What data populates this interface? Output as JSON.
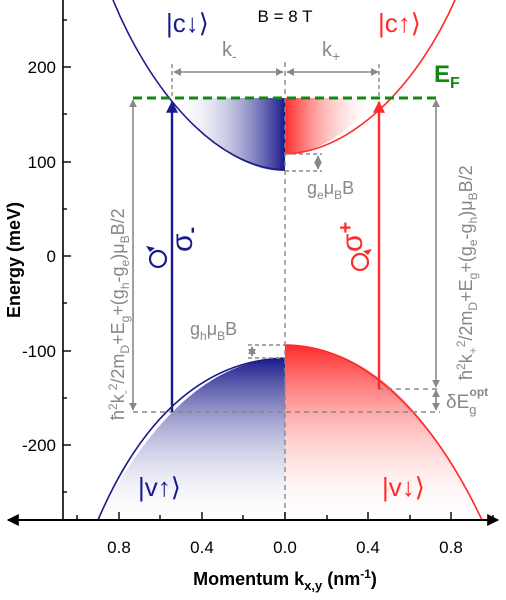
{
  "header": {
    "field": "B = 8 T"
  },
  "axes": {
    "ylabel": "Energy (meV)",
    "ylabel_short": "Energy",
    "ylabel_unit": "(meV)",
    "xlabel_main": "Momentum k",
    "xlabel_sub": "x,y",
    "xlabel_unit_pre": "(nm",
    "xlabel_unit_sup": "-1",
    "xlabel_unit_post": ")",
    "y_ticks": [
      "200",
      "100",
      "0",
      "-100",
      "-200"
    ],
    "x_ticks": [
      "0.8",
      "0.4",
      "0.0",
      "0.4",
      "0.8"
    ]
  },
  "bands": {
    "c_down": {
      "bra": "|c",
      "arrow": "↓",
      "ket": "⟩"
    },
    "c_up": {
      "bra": "|c",
      "arrow": "↑",
      "ket": "⟩"
    },
    "v_up": {
      "bra": "|v",
      "arrow": "↑",
      "ket": "⟩"
    },
    "v_down": {
      "bra": "|v",
      "arrow": "↓",
      "ket": "⟩"
    }
  },
  "labels": {
    "k_minus": "k",
    "k_minus_sub": "-",
    "k_plus": "k",
    "k_plus_sub": "+",
    "fermi": "E",
    "fermi_sub": "F",
    "ge_g": "g",
    "ge_sub_e": "e",
    "ge_mu": "μ",
    "ge_sub_b": "B",
    "ge_B": "B",
    "gh_g": "g",
    "gh_sub_h": "h",
    "gh_mu": "μ",
    "gh_sub_b": "B",
    "gh_B": "B",
    "sigma_minus": "σ",
    "sigma_minus_sub": "-",
    "sigma_plus": "σ",
    "sigma_plus_sup": "+",
    "delta_e": "δE",
    "delta_e_sub": "g",
    "delta_e_sup": "opt"
  },
  "formula_left": {
    "p1": "ħ",
    "p1_sup": "2",
    "p2": "k",
    "p2_sub": "-",
    "p2_sup": "2",
    "p3": "/2m",
    "p3_sub": "D",
    "p4": "+E",
    "p4_sub": "g",
    "p5": "+(g",
    "p5_sub": "h",
    "p6": "-g",
    "p6_sub": "e",
    "p7": ")μ",
    "p7_sub": "B",
    "p8": "B/2"
  },
  "formula_right": {
    "p1": "ħ",
    "p1_sup": "2",
    "p2": "k",
    "p2_sub": "+",
    "p2_sup": "2",
    "p3": "/2m",
    "p3_sub": "D",
    "p4": "+E",
    "p4_sub": "g",
    "p5": "+(g",
    "p5_sub": "e",
    "p6": "-g",
    "p6_sub": "h",
    "p7": ")μ",
    "p7_sub": "B",
    "p8": "B/2"
  },
  "colors": {
    "blue": "#1a1a8c",
    "red": "#ff2a2a",
    "green": "#0f8a0f",
    "gray": "#888888"
  }
}
